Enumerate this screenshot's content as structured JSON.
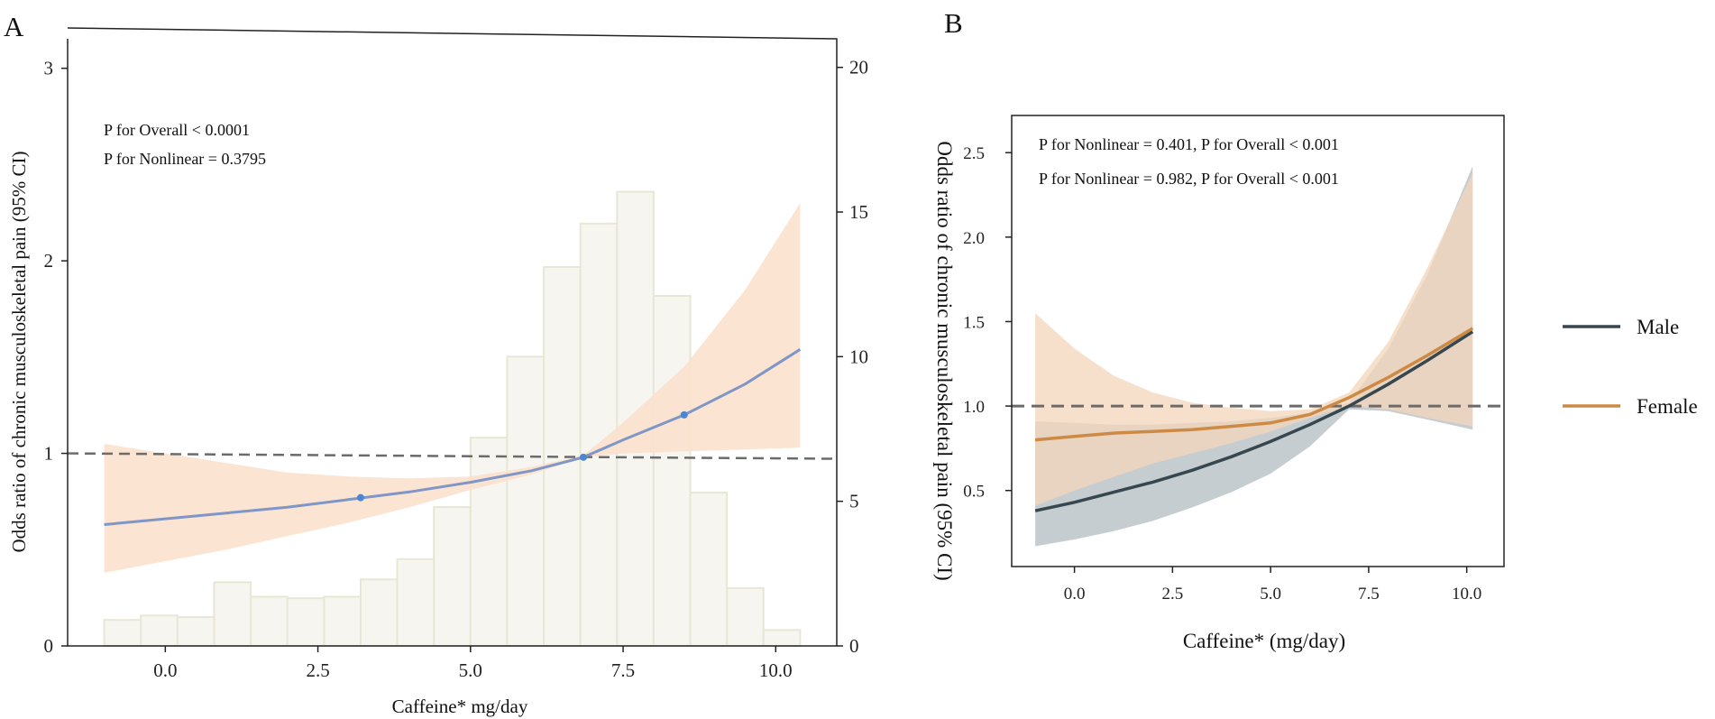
{
  "chart_data": [
    {
      "panel_label": "A",
      "type": "line",
      "title": "",
      "xlabel": "Caffeine* mg/day",
      "ylabel": "Odds ratio of chronic musculoskeletal pain (95% CI)",
      "y2label": "",
      "xlim": [
        -1.6,
        11.0
      ],
      "ylim": [
        0,
        3.2
      ],
      "y2lim": [
        0,
        21.3
      ],
      "xticks": [
        0.0,
        2.5,
        5.0,
        7.5,
        10.0
      ],
      "xtick_labels": [
        "0.0",
        "2.5",
        "5.0",
        "7.5",
        "10.0"
      ],
      "yticks": [
        0,
        1,
        2,
        3
      ],
      "ytick_labels": [
        "0",
        "1",
        "2",
        "3"
      ],
      "y2ticks": [
        0,
        5,
        10,
        15,
        20
      ],
      "y2tick_labels": [
        "0",
        "5",
        "10",
        "15",
        "20"
      ],
      "annotations": [
        "P for Overall < 0.0001",
        "P for Nonlinear = 0.3795"
      ],
      "reference_line": 1.0,
      "histogram": {
        "bin_edges": [
          -1.0,
          -0.4,
          0.2,
          0.8,
          1.4,
          2.0,
          2.6,
          3.2,
          3.8,
          4.4,
          5.0,
          5.6,
          6.2,
          6.8,
          7.4,
          8.0,
          8.6,
          9.2,
          9.8,
          10.4
        ],
        "counts": [
          0.9,
          1.05,
          1.0,
          2.2,
          1.7,
          1.65,
          1.7,
          2.3,
          3.0,
          4.8,
          7.2,
          10.0,
          13.1,
          14.6,
          15.7,
          12.1,
          5.3,
          2.0,
          0.55
        ]
      },
      "series": [
        {
          "name": "OR",
          "color": "#7f96c7",
          "x": [
            -1.0,
            0.0,
            1.0,
            2.0,
            3.0,
            4.0,
            5.0,
            6.0,
            6.85,
            7.5,
            8.5,
            9.5,
            10.4
          ],
          "y": [
            0.63,
            0.66,
            0.69,
            0.72,
            0.76,
            0.8,
            0.85,
            0.91,
            0.98,
            1.07,
            1.2,
            1.36,
            1.54
          ],
          "ci_lower": [
            0.38,
            0.44,
            0.5,
            0.57,
            0.64,
            0.72,
            0.81,
            0.89,
            0.98,
            1.0,
            1.01,
            1.02,
            1.03
          ],
          "ci_upper": [
            1.05,
            1.0,
            0.95,
            0.9,
            0.88,
            0.87,
            0.88,
            0.93,
            0.99,
            1.16,
            1.45,
            1.85,
            2.3
          ]
        }
      ],
      "knots": {
        "x": [
          3.2,
          6.85,
          8.5
        ],
        "y": [
          0.77,
          0.98,
          1.2
        ],
        "color": "#4a86d2"
      },
      "ci_color": "#fbe1cc",
      "hist_color": "#f6f5ef"
    },
    {
      "panel_label": "B",
      "type": "line",
      "title": "",
      "xlabel": "Caffeine* (mg/day)",
      "ylabel": "Odds ratio of chronic musculoskeletal pain (95% CI)",
      "xlim": [
        -1.6,
        10.95
      ],
      "ylim": [
        0.05,
        2.72
      ],
      "xticks": [
        0.0,
        2.5,
        5.0,
        7.5,
        10.0
      ],
      "xtick_labels": [
        "0.0",
        "2.5",
        "5.0",
        "7.5",
        "10.0"
      ],
      "yticks": [
        0.5,
        1.0,
        1.5,
        2.0,
        2.5
      ],
      "ytick_labels": [
        "0.5",
        "1.0",
        "1.5",
        "2.0",
        "2.5"
      ],
      "annotations": [
        "P for Nonlinear = 0.401, P for Overall < 0.001",
        "P for Nonlinear = 0.982, P for Overall < 0.001"
      ],
      "reference_line": 1.0,
      "legend_position": "right",
      "series": [
        {
          "name": "Male",
          "color": "#37474f",
          "ci_color": "#b3bcc0",
          "x": [
            -1.0,
            0.0,
            1.0,
            2.0,
            3.0,
            4.0,
            5.0,
            6.0,
            7.0,
            8.0,
            9.0,
            10.15
          ],
          "y": [
            0.38,
            0.43,
            0.49,
            0.55,
            0.62,
            0.7,
            0.79,
            0.89,
            1.0,
            1.13,
            1.27,
            1.44
          ],
          "ci_lower": [
            0.17,
            0.21,
            0.26,
            0.32,
            0.4,
            0.49,
            0.6,
            0.76,
            0.98,
            0.97,
            0.92,
            0.86
          ],
          "ci_upper": [
            0.91,
            0.9,
            0.89,
            0.89,
            0.9,
            0.91,
            0.93,
            0.96,
            1.02,
            1.34,
            1.78,
            2.42
          ]
        },
        {
          "name": "Female",
          "color": "#cd8a45",
          "ci_color": "#f3d6bb",
          "x": [
            -1.0,
            0.0,
            1.0,
            2.0,
            3.0,
            4.0,
            5.0,
            6.0,
            7.0,
            8.0,
            9.0,
            10.15
          ],
          "y": [
            0.8,
            0.82,
            0.84,
            0.85,
            0.86,
            0.88,
            0.9,
            0.95,
            1.05,
            1.17,
            1.3,
            1.46
          ],
          "ci_lower": [
            0.41,
            0.5,
            0.58,
            0.66,
            0.72,
            0.78,
            0.85,
            0.93,
            1.0,
            0.98,
            0.93,
            0.88
          ],
          "ci_upper": [
            1.55,
            1.34,
            1.18,
            1.08,
            1.02,
            0.99,
            0.97,
            0.98,
            1.08,
            1.38,
            1.82,
            2.38
          ]
        }
      ]
    }
  ]
}
